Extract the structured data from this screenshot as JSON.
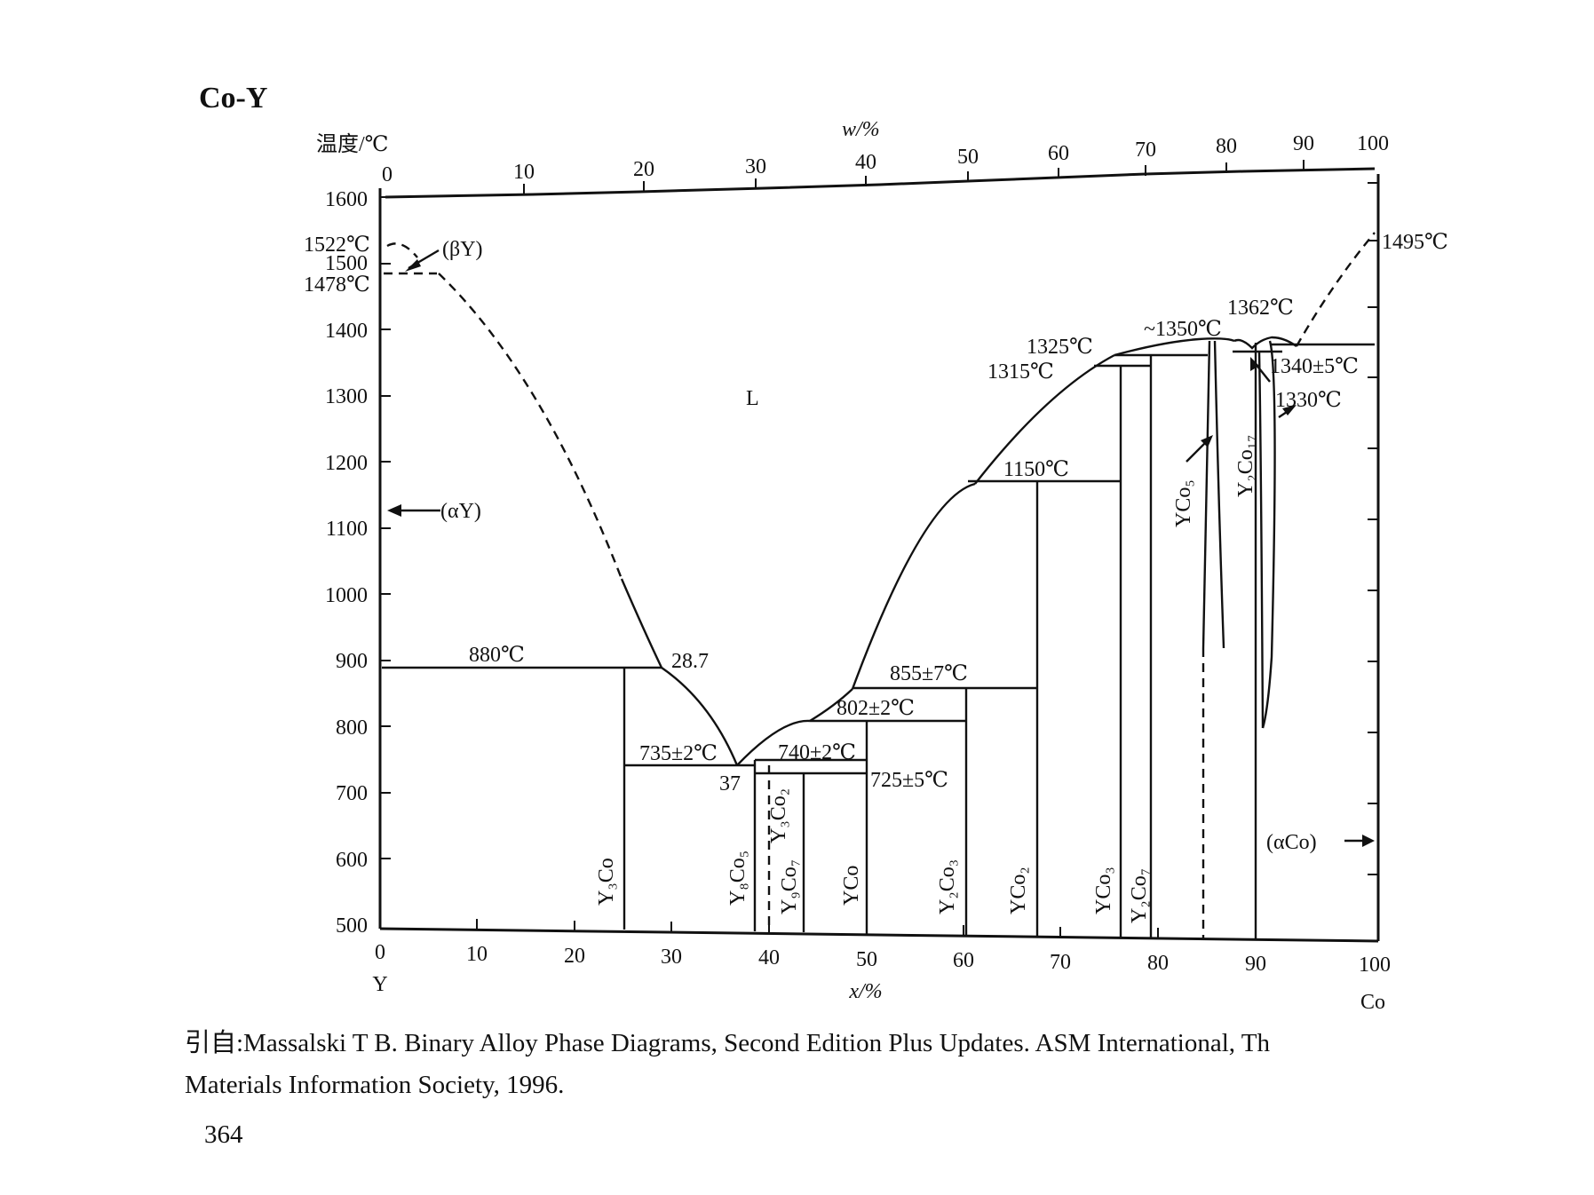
{
  "title": "Co-Y",
  "axes": {
    "temp_label": "温度/℃",
    "w_label": "w/%",
    "x_label": "x/%",
    "left_element": "Y",
    "right_element": "Co",
    "y_ticks": [
      "1600",
      "1500",
      "1400",
      "1300",
      "1200",
      "1100",
      "1000",
      "900",
      "800",
      "700",
      "600",
      "500"
    ],
    "x_ticks": [
      "0",
      "10",
      "20",
      "30",
      "40",
      "50",
      "60",
      "70",
      "80",
      "90",
      "100"
    ],
    "w_ticks": [
      "0",
      "10",
      "20",
      "30",
      "40",
      "50",
      "60",
      "70",
      "80",
      "90",
      "100"
    ]
  },
  "labels": {
    "t1522": "1522℃",
    "t1478": "1478℃",
    "beta_y": "(βY)",
    "alpha_y": "(αY)",
    "liquid": "L",
    "t880": "880℃",
    "c287": "28.7",
    "t735": "735±2℃",
    "c37": "37",
    "t740": "740±2℃",
    "t725": "725±5℃",
    "t802": "802±2℃",
    "t855": "855±7℃",
    "t1150": "1150℃",
    "t1315": "1315℃",
    "t1325": "1325℃",
    "t1350": "~1350℃",
    "t1362": "1362℃",
    "t1340": "1340±5℃",
    "t1330": "1330℃",
    "t1495": "1495℃",
    "alpha_co": "(αCo)"
  },
  "phases": {
    "y3co": "Y₃Co",
    "y8co5": "Y₈Co₅",
    "y3co2": "Y₃Co₂",
    "y9co7": "Y₉Co₇",
    "yco": "YCo",
    "y2co3": "Y₂Co₃",
    "yco2": "YCo₂",
    "yco3": "YCo₃",
    "y2co7": "Y₂Co₇",
    "yco5": "YCo₅",
    "y2co17": "Y₂Co₁₇"
  },
  "citation": {
    "line1": "引自:Massalski T B. Binary Alloy Phase Diagrams, Second Edition Plus Updates. ASM International, Th",
    "line2": "Materials Information Society, 1996."
  },
  "page_number": "364"
}
